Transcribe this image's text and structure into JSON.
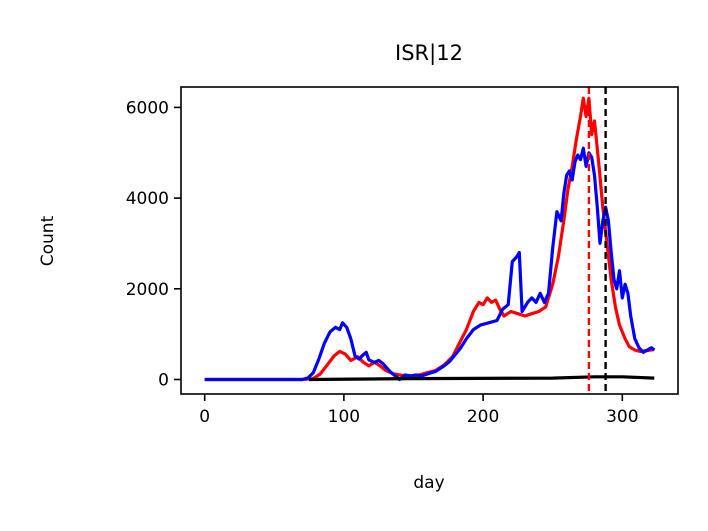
{
  "chart_data": {
    "type": "line",
    "title": "ISR|12",
    "xlabel": "day",
    "ylabel": "Count",
    "xlim": [
      -17,
      340
    ],
    "ylim": [
      -320,
      6450
    ],
    "xticks": [
      0,
      100,
      200,
      300
    ],
    "yticks": [
      0,
      2000,
      4000,
      6000
    ],
    "grid": false,
    "legend": null,
    "series": [
      {
        "color": "#ff0000",
        "points": [
          [
            0,
            0
          ],
          [
            70,
            0
          ],
          [
            78,
            20
          ],
          [
            83,
            120
          ],
          [
            88,
            320
          ],
          [
            93,
            520
          ],
          [
            97,
            620
          ],
          [
            101,
            560
          ],
          [
            105,
            420
          ],
          [
            110,
            500
          ],
          [
            114,
            380
          ],
          [
            118,
            300
          ],
          [
            122,
            380
          ],
          [
            126,
            300
          ],
          [
            130,
            200
          ],
          [
            136,
            120
          ],
          [
            142,
            90
          ],
          [
            148,
            80
          ],
          [
            154,
            100
          ],
          [
            160,
            150
          ],
          [
            166,
            200
          ],
          [
            172,
            320
          ],
          [
            178,
            500
          ],
          [
            183,
            800
          ],
          [
            188,
            1100
          ],
          [
            193,
            1500
          ],
          [
            197,
            1700
          ],
          [
            200,
            1650
          ],
          [
            203,
            1800
          ],
          [
            206,
            1700
          ],
          [
            209,
            1750
          ],
          [
            212,
            1550
          ],
          [
            215,
            1400
          ],
          [
            220,
            1500
          ],
          [
            225,
            1450
          ],
          [
            230,
            1400
          ],
          [
            235,
            1450
          ],
          [
            240,
            1500
          ],
          [
            245,
            1600
          ],
          [
            250,
            2100
          ],
          [
            254,
            2700
          ],
          [
            258,
            3500
          ],
          [
            261,
            4200
          ],
          [
            264,
            4700
          ],
          [
            267,
            5300
          ],
          [
            270,
            5800
          ],
          [
            272,
            6200
          ],
          [
            274,
            5800
          ],
          [
            276,
            6200
          ],
          [
            278,
            5400
          ],
          [
            280,
            5700
          ],
          [
            283,
            4800
          ],
          [
            286,
            3800
          ],
          [
            289,
            3000
          ],
          [
            292,
            2200
          ],
          [
            295,
            1600
          ],
          [
            298,
            1200
          ],
          [
            302,
            900
          ],
          [
            305,
            720
          ],
          [
            309,
            650
          ],
          [
            313,
            620
          ],
          [
            318,
            640
          ],
          [
            323,
            660
          ]
        ]
      },
      {
        "color": "#0000ff",
        "points": [
          [
            0,
            0
          ],
          [
            70,
            0
          ],
          [
            74,
            30
          ],
          [
            78,
            150
          ],
          [
            82,
            450
          ],
          [
            86,
            800
          ],
          [
            90,
            1050
          ],
          [
            94,
            1150
          ],
          [
            97,
            1100
          ],
          [
            99,
            1250
          ],
          [
            102,
            1150
          ],
          [
            105,
            900
          ],
          [
            108,
            520
          ],
          [
            111,
            450
          ],
          [
            113,
            520
          ],
          [
            116,
            600
          ],
          [
            118,
            430
          ],
          [
            122,
            380
          ],
          [
            125,
            420
          ],
          [
            128,
            350
          ],
          [
            131,
            250
          ],
          [
            134,
            150
          ],
          [
            137,
            80
          ],
          [
            140,
            0
          ],
          [
            144,
            100
          ],
          [
            148,
            80
          ],
          [
            152,
            100
          ],
          [
            156,
            80
          ],
          [
            160,
            120
          ],
          [
            166,
            180
          ],
          [
            172,
            300
          ],
          [
            176,
            400
          ],
          [
            180,
            550
          ],
          [
            184,
            700
          ],
          [
            188,
            900
          ],
          [
            193,
            1100
          ],
          [
            198,
            1200
          ],
          [
            204,
            1250
          ],
          [
            210,
            1300
          ],
          [
            214,
            1550
          ],
          [
            218,
            1650
          ],
          [
            221,
            2600
          ],
          [
            224,
            2700
          ],
          [
            226,
            2800
          ],
          [
            228,
            1500
          ],
          [
            232,
            1700
          ],
          [
            235,
            1800
          ],
          [
            238,
            1700
          ],
          [
            241,
            1900
          ],
          [
            244,
            1700
          ],
          [
            247,
            1900
          ],
          [
            250,
            2900
          ],
          [
            253,
            3700
          ],
          [
            256,
            3500
          ],
          [
            258,
            4100
          ],
          [
            260,
            4500
          ],
          [
            262,
            4600
          ],
          [
            264,
            4400
          ],
          [
            266,
            4800
          ],
          [
            268,
            4950
          ],
          [
            270,
            4850
          ],
          [
            272,
            5100
          ],
          [
            274,
            4700
          ],
          [
            276,
            5000
          ],
          [
            278,
            4900
          ],
          [
            280,
            4500
          ],
          [
            282,
            3800
          ],
          [
            284,
            3000
          ],
          [
            286,
            3500
          ],
          [
            288,
            3800
          ],
          [
            290,
            3500
          ],
          [
            292,
            2800
          ],
          [
            294,
            2200
          ],
          [
            296,
            2000
          ],
          [
            298,
            2400
          ],
          [
            300,
            1800
          ],
          [
            302,
            2100
          ],
          [
            304,
            1900
          ],
          [
            306,
            1400
          ],
          [
            309,
            900
          ],
          [
            312,
            700
          ],
          [
            315,
            600
          ],
          [
            318,
            650
          ],
          [
            321,
            700
          ],
          [
            323,
            650
          ]
        ]
      },
      {
        "color": "#000000",
        "points": [
          [
            75,
            0
          ],
          [
            150,
            20
          ],
          [
            250,
            30
          ],
          [
            280,
            60
          ],
          [
            300,
            60
          ],
          [
            323,
            30
          ]
        ]
      }
    ],
    "vlines": [
      {
        "x": 276,
        "color": "#ff0000",
        "style": "dashed"
      },
      {
        "x": 288,
        "color": "#000000",
        "style": "dashed"
      }
    ]
  }
}
